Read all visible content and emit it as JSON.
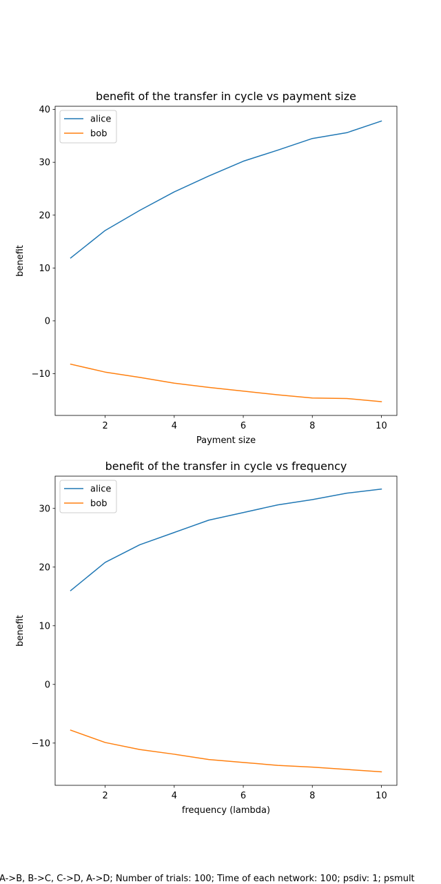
{
  "chart_data": [
    {
      "type": "line",
      "title": "benefit of the transfer in cycle vs payment size",
      "xlabel": "Payment size",
      "ylabel": "benefit",
      "x": [
        1,
        2,
        3,
        4,
        5,
        6,
        7,
        8,
        9,
        10
      ],
      "xlim": [
        0.55,
        10.45
      ],
      "ylim": [
        -17.9,
        40.6
      ],
      "xticks": [
        2,
        4,
        6,
        8,
        10
      ],
      "yticks": [
        -10,
        0,
        10,
        20,
        30,
        40
      ],
      "ytick_labels": [
        "−10",
        "0",
        "10",
        "20",
        "30",
        "40"
      ],
      "legend": "top-left",
      "grid": false,
      "series": [
        {
          "name": "alice",
          "color": "#1f77b4",
          "values": [
            11.9,
            17.1,
            20.9,
            24.4,
            27.4,
            30.2,
            32.3,
            34.5,
            35.6,
            37.8
          ]
        },
        {
          "name": "bob",
          "color": "#ff7f0e",
          "values": [
            -8.2,
            -9.7,
            -10.7,
            -11.8,
            -12.6,
            -13.3,
            -14.0,
            -14.6,
            -14.7,
            -15.3
          ]
        }
      ]
    },
    {
      "type": "line",
      "title": "benefit of the transfer in cycle vs frequency",
      "xlabel": "frequency (lambda)",
      "ylabel": "benefit",
      "x": [
        1,
        2,
        3,
        4,
        5,
        6,
        7,
        8,
        9,
        10
      ],
      "xlim": [
        0.55,
        10.45
      ],
      "ylim": [
        -17.2,
        35.5
      ],
      "xticks": [
        2,
        4,
        6,
        8,
        10
      ],
      "yticks": [
        -10,
        0,
        10,
        20,
        30
      ],
      "ytick_labels": [
        "−10",
        "0",
        "10",
        "20",
        "30"
      ],
      "legend": "top-left",
      "grid": false,
      "series": [
        {
          "name": "alice",
          "color": "#1f77b4",
          "values": [
            16.0,
            20.8,
            23.8,
            25.9,
            28.0,
            29.3,
            30.6,
            31.5,
            32.6,
            33.3
          ]
        },
        {
          "name": "bob",
          "color": "#ff7f0e",
          "values": [
            -7.8,
            -9.9,
            -11.1,
            -11.9,
            -12.8,
            -13.3,
            -13.8,
            -14.1,
            -14.5,
            -14.9
          ]
        }
      ]
    }
  ],
  "caption": "A->B, B->C, C->D, A->D; Number of trials: 100; Time of each network: 100; psdiv: 1; psmult"
}
